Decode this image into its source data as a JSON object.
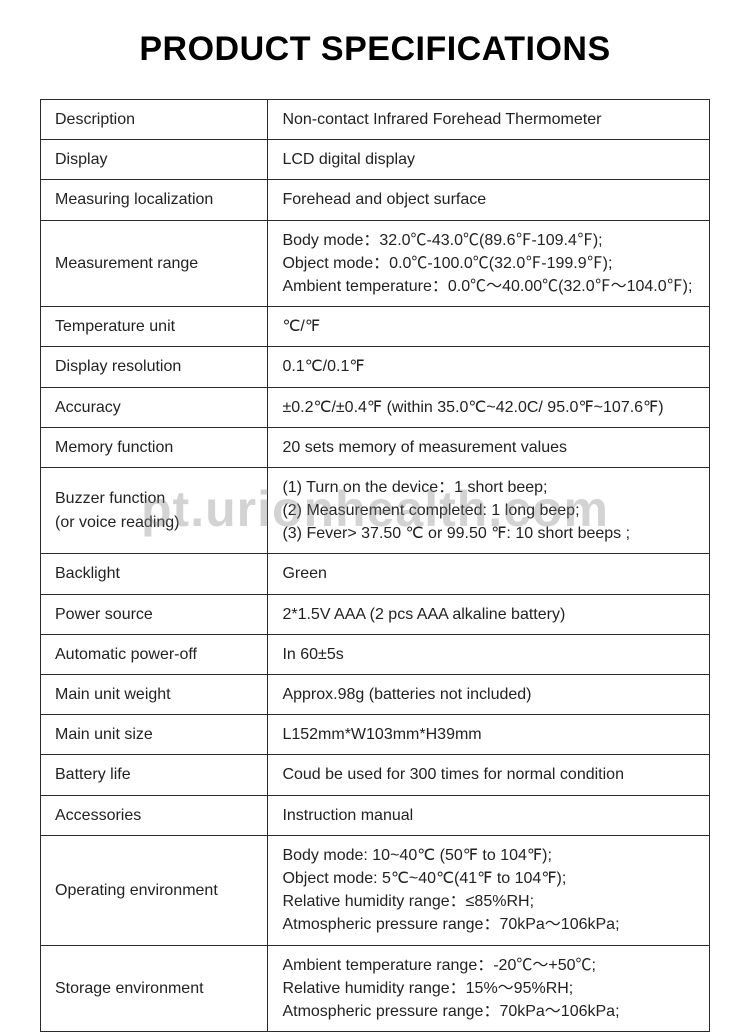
{
  "title": "PRODUCT SPECIFICATIONS",
  "watermark": "pt.urionhealth.com",
  "table": {
    "border_color": "#2b2b2b",
    "text_color": "#222222",
    "font_size": 16,
    "label_col_width_pct": 34,
    "value_col_width_pct": 66,
    "rows": [
      {
        "label": "Description",
        "value": "Non-contact Infrared Forehead Thermometer"
      },
      {
        "label": "Display",
        "value": "LCD digital display"
      },
      {
        "label": "Measuring localization",
        "value": "Forehead and object surface"
      },
      {
        "label": "Measurement range",
        "value": "Body mode：32.0℃-43.0℃(89.6℉-109.4℉);\nObject mode：0.0℃-100.0℃(32.0℉-199.9℉);\nAmbient temperature：0.0℃～40.00℃(32.0℉～104.0℉);",
        "multiline": true
      },
      {
        "label": "Temperature unit",
        "value": "℃/℉"
      },
      {
        "label": "Display resolution",
        "value": "0.1℃/0.1℉"
      },
      {
        "label": "Accuracy",
        "value": "±0.2℃/±0.4℉ (within 35.0℃~42.0C/ 95.0℉~107.6℉)"
      },
      {
        "label": "Memory function",
        "value": "20 sets memory of measurement values"
      },
      {
        "label": "Buzzer function\n(or voice reading)",
        "label_multiline": true,
        "value": "(1) Turn on the device：1 short beep;\n(2) Measurement completed: 1 long beep;\n(3) Fever> 37.50 ℃ or 99.50 ℉: 10 short beeps ;",
        "multiline": true
      },
      {
        "label": "Backlight",
        "value": "Green"
      },
      {
        "label": "Power source",
        "value": "2*1.5V AAA  (2 pcs AAA alkaline battery)"
      },
      {
        "label": "Automatic power-off",
        "value": "In 60±5s"
      },
      {
        "label": "Main unit weight",
        "value": "Approx.98g (batteries not included)"
      },
      {
        "label": "Main unit size",
        "value": "L152mm*W103mm*H39mm"
      },
      {
        "label": "Battery life",
        "value": "Coud be used for 300 times for normal condition"
      },
      {
        "label": "Accessories",
        "value": "Instruction manual"
      },
      {
        "label": "Operating environment",
        "value": "Body mode: 10~40℃ (50℉ to 104℉);\nObject mode: 5℃~40℃(41℉ to 104℉);\nRelative humidity range：≤85%RH;\nAtmospheric pressure range：70kPa～106kPa;",
        "multiline": true
      },
      {
        "label": "Storage environment",
        "value": "Ambient temperature range：-20℃～+50℃;\nRelative humidity range：15%～95%RH;\nAtmospheric pressure range：70kPa～106kPa;",
        "multiline": true
      }
    ]
  }
}
